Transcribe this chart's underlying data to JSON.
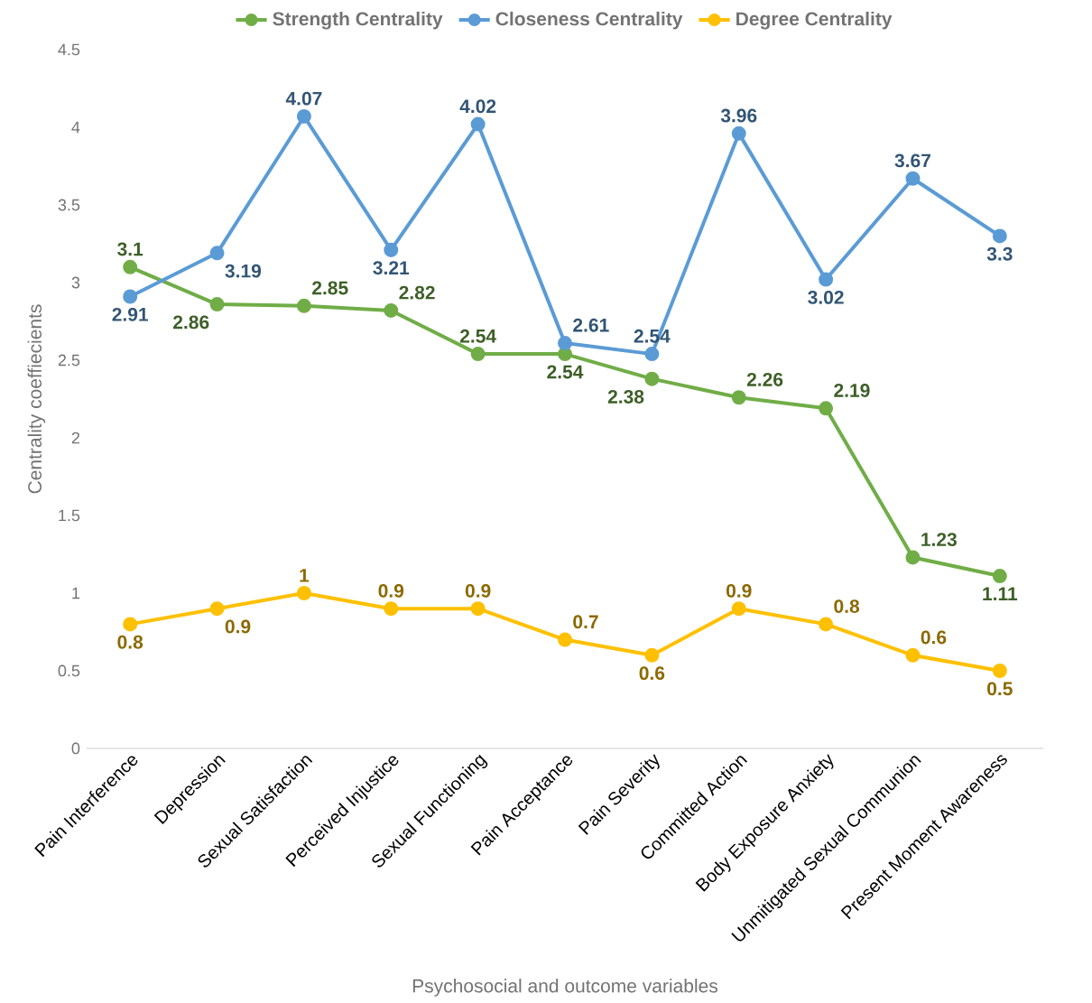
{
  "chart_data": {
    "type": "line",
    "categories": [
      "Pain Interference",
      "Depression",
      "Sexual Satisfaction",
      "Perceived Injustice",
      "Sexual Functioning",
      "Pain Acceptance",
      "Pain Severity",
      "Committed Action",
      "Body Exposure Anxiety",
      "Unmitigated Sexual Communion",
      "Present Moment Awareness"
    ],
    "series": [
      {
        "name": "Strength Centrality",
        "color": "#70ad47",
        "values": [
          3.1,
          2.86,
          2.85,
          2.82,
          2.54,
          2.54,
          2.38,
          2.26,
          2.19,
          1.23,
          1.11
        ]
      },
      {
        "name": "Closeness Centrality",
        "color": "#5b9bd5",
        "values": [
          2.91,
          3.19,
          4.07,
          3.21,
          4.02,
          2.61,
          2.54,
          3.96,
          3.02,
          3.67,
          3.3
        ]
      },
      {
        "name": "Degree Centrality",
        "color": "#ffc000",
        "values": [
          0.8,
          0.9,
          1,
          0.9,
          0.9,
          0.7,
          0.6,
          0.9,
          0.8,
          0.6,
          0.5
        ]
      }
    ],
    "xlabel": "Psychosocial and outcome variables",
    "ylabel": "Centrality coeffiecients",
    "ylim": [
      0,
      4.5
    ],
    "yticks": [
      0,
      0.5,
      1,
      1.5,
      2,
      2.5,
      3,
      3.5,
      4,
      4.5
    ],
    "data_labels": true,
    "legend": "top",
    "marker": "circle",
    "line_style": "solid",
    "grid": false
  }
}
